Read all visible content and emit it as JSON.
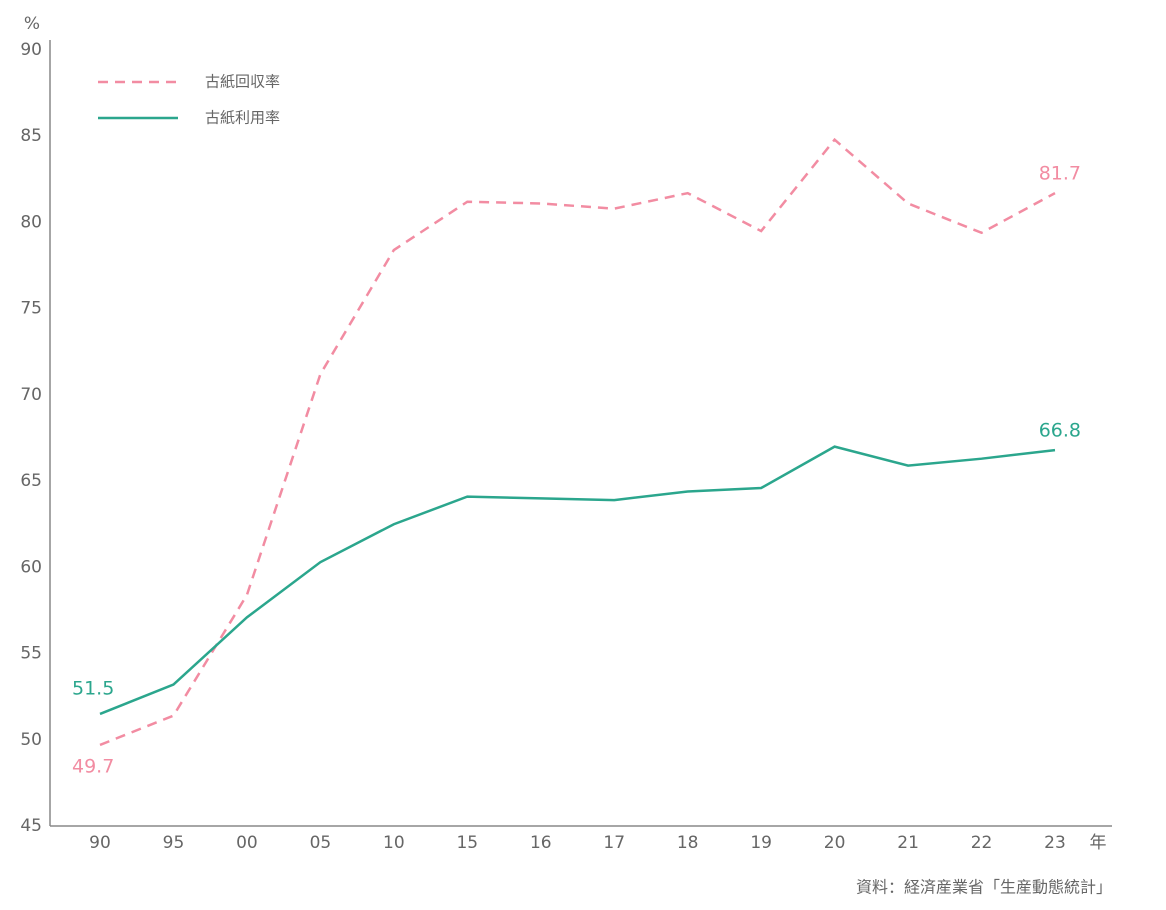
{
  "chart_data": {
    "type": "line",
    "y_unit": "%",
    "x_unit": "年",
    "source": "資料：経済産業省「生産動態統計」",
    "categories": [
      "90",
      "95",
      "00",
      "05",
      "10",
      "15",
      "16",
      "17",
      "18",
      "19",
      "20",
      "21",
      "22",
      "23"
    ],
    "series": [
      {
        "name": "古紙回収率",
        "color": "#f28ca2",
        "dash": true,
        "values": [
          49.7,
          51.4,
          58.4,
          71.2,
          78.4,
          81.2,
          81.1,
          80.8,
          81.7,
          79.5,
          84.8,
          81.1,
          79.4,
          81.7
        ]
      },
      {
        "name": "古紙利用率",
        "color": "#2ba68d",
        "dash": false,
        "values": [
          51.5,
          53.2,
          57.1,
          60.3,
          62.5,
          64.1,
          64.0,
          63.9,
          64.4,
          64.6,
          67.0,
          65.9,
          66.3,
          66.8
        ]
      }
    ],
    "ylim": [
      45,
      90
    ],
    "yticks": [
      45,
      50,
      55,
      60,
      65,
      70,
      75,
      80,
      85,
      90
    ],
    "grid": false
  }
}
